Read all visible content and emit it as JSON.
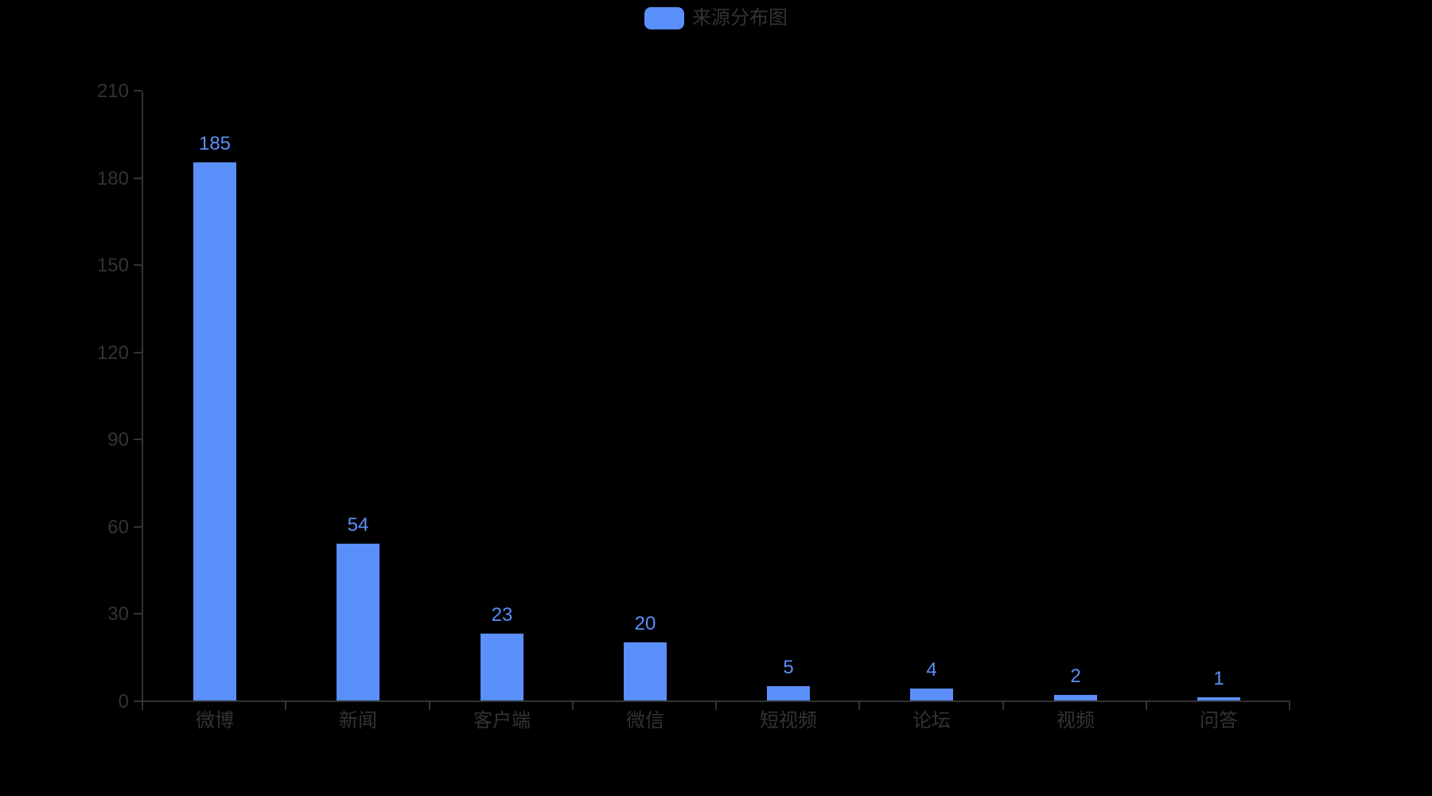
{
  "legend": {
    "label": "来源分布图"
  },
  "chart_data": {
    "type": "bar",
    "title": "来源分布图",
    "series_name": "来源分布图",
    "categories": [
      "微博",
      "新闻",
      "客户端",
      "微信",
      "短视频",
      "论坛",
      "视频",
      "问答"
    ],
    "values": [
      185,
      54,
      23,
      20,
      5,
      4,
      2,
      1
    ],
    "y_ticks": [
      0,
      30,
      60,
      90,
      120,
      150,
      180,
      210
    ],
    "ylim": [
      0,
      210
    ],
    "xlabel": "",
    "ylabel": "",
    "grid": false,
    "legend_position": "top-center",
    "colors": {
      "background": "#000000",
      "bar": "#5B8FF9",
      "value_label": "#5B8FF9",
      "axis": "#333333",
      "text": "#333333"
    }
  }
}
